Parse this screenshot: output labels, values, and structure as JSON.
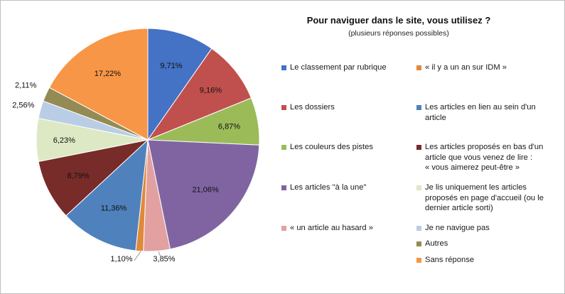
{
  "chart_data": {
    "type": "pie",
    "title": "Pour naviguer dans le site, vous utilisez ?",
    "subtitle": "(plusieurs réponses possibles)",
    "slices": [
      {
        "label": "Le classement par rubrique",
        "value": 9.71,
        "value_label": "9,71%",
        "color": "#4472C4"
      },
      {
        "label": "Les dossiers",
        "value": 9.16,
        "value_label": "9,16%",
        "color": "#C0504D"
      },
      {
        "label": "Les couleurs des pistes",
        "value": 6.87,
        "value_label": "6,87%",
        "color": "#9BBB59"
      },
      {
        "label": "Les articles \"à la une\"",
        "value": 21.06,
        "value_label": "21,06%",
        "color": "#8064A2"
      },
      {
        "label": "« un article au hasard »",
        "value": 3.85,
        "value_label": "3,85%",
        "color": "#E3A0A0"
      },
      {
        "label": "« il y a un an sur IDM »",
        "value": 1.1,
        "value_label": "1,10%",
        "color": "#E0893A"
      },
      {
        "label": "Les articles en lien au sein d'un article",
        "value": 11.36,
        "value_label": "11,36%",
        "color": "#4F81BD"
      },
      {
        "label": "Les articles proposés en bas d'un article que vous venez de lire : « vous aimerez peut-être »",
        "value": 8.79,
        "value_label": "8,79%",
        "color": "#772C2A"
      },
      {
        "label": "Je lis uniquement les articles proposés en page d'accueil (ou le dernier article sorti)",
        "value": 6.23,
        "value_label": "6,23%",
        "color": "#DDE8C4"
      },
      {
        "label": "Je ne navigue pas",
        "value": 2.56,
        "value_label": "2,56%",
        "color": "#B9CDE5"
      },
      {
        "label": "Autres",
        "value": 2.11,
        "value_label": "2,11%",
        "color": "#948A54"
      },
      {
        "label": "Sans réponse",
        "value": 17.22,
        "value_label": "17,22%",
        "color": "#F79646"
      }
    ],
    "legend": {
      "placement": "right",
      "columns": [
        [
          {
            "text": "Le classement par rubrique",
            "color": "#4472C4"
          },
          {
            "text": "Les dossiers",
            "color": "#C0504D"
          },
          {
            "text": "Les couleurs des pistes",
            "color": "#9BBB59"
          },
          {
            "text": "Les articles \"à la une\"",
            "color": "#8064A2"
          },
          {
            "text": "« un article au hasard »",
            "color": "#E3A0A0"
          }
        ],
        [
          {
            "text": "« il y a un an sur IDM »",
            "color": "#E0893A"
          },
          {
            "text": "Les articles en lien au sein d'un\narticle",
            "color": "#4F81BD"
          },
          {
            "text": "Les articles proposés en bas d'un\narticle que vous venez de lire :\n« vous aimerez peut-être »",
            "color": "#772C2A"
          },
          {
            "text": "Je lis uniquement les articles\nproposés en page d'accueil (ou le\ndernier article sorti)",
            "color": "#DDE8C4"
          },
          {
            "text": "Je ne navigue pas",
            "color": "#B9CDE5"
          },
          {
            "text": "Autres",
            "color": "#948A54"
          },
          {
            "text": "Sans réponse",
            "color": "#F79646"
          }
        ]
      ]
    }
  }
}
